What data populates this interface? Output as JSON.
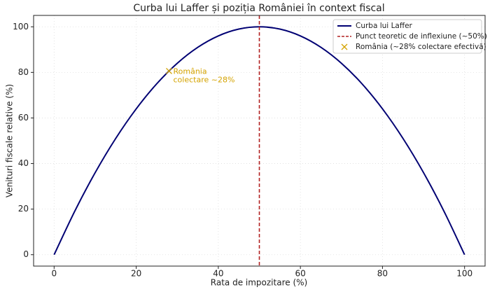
{
  "chart_data": {
    "type": "line",
    "title": "Curba lui Laffer și poziția României în context fiscal",
    "xlabel": "Rata de impozitare (%)",
    "ylabel": "Venituri fiscale relative (%)",
    "x": [
      0,
      5,
      10,
      15,
      20,
      25,
      30,
      35,
      40,
      45,
      50,
      55,
      60,
      65,
      70,
      75,
      80,
      85,
      90,
      95,
      100
    ],
    "series": [
      {
        "name": "Curba lui Laffer",
        "color": "#000073",
        "values": [
          0,
          19,
          36,
          51,
          64,
          75,
          84,
          91,
          96,
          99,
          100,
          99,
          96,
          91,
          84,
          75,
          64,
          51,
          36,
          19,
          0
        ]
      }
    ],
    "vline": {
      "name": "Punct teoretic de inflexiune (~50%)",
      "x": 50,
      "color": "#b22222"
    },
    "points": {
      "name": "România (~28% colectare efectivă)",
      "color": "#d4a300",
      "x": [
        28
      ],
      "y": [
        80.6
      ]
    },
    "annotation": [
      "România",
      "colectare ~28%"
    ],
    "xlim": [
      -5,
      105
    ],
    "ylim": [
      -5,
      105
    ],
    "xticks": [
      0,
      20,
      40,
      60,
      80,
      100
    ],
    "yticks": [
      0,
      20,
      40,
      60,
      80,
      100
    ],
    "grid": true,
    "legend": "upper right"
  }
}
